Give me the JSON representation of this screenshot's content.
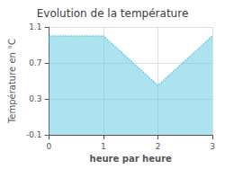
{
  "chart_data": {
    "type": "line",
    "title": "Evolution de la température",
    "xlabel": "heure par heure",
    "ylabel": "Température en °C",
    "x": [
      0,
      1,
      2,
      3
    ],
    "values": [
      1.0,
      1.0,
      0.45,
      1.0
    ],
    "xlim": [
      0,
      3
    ],
    "xticks": [
      0,
      1,
      2,
      3
    ],
    "ylim": [
      -0.1,
      1.1
    ],
    "yticks": [
      -0.1,
      0.3,
      0.7,
      1.1
    ],
    "color": "#5bc8e0",
    "line_style": "dotted",
    "grid": true
  }
}
